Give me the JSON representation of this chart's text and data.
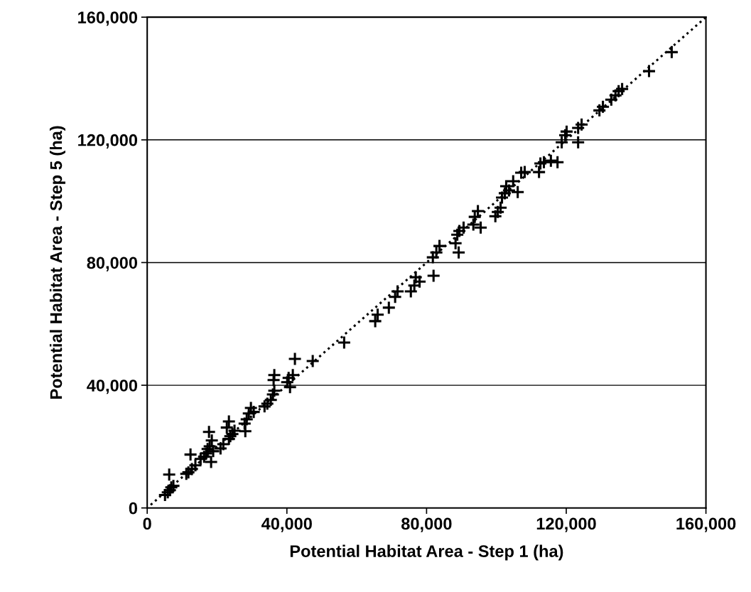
{
  "chart_data": {
    "type": "scatter",
    "xlabel": "Potential Habitat Area - Step 1 (ha)",
    "ylabel": "Potential Habitat Area - Step 5 (ha)",
    "xlim": [
      0,
      160000
    ],
    "ylim": [
      0,
      160000
    ],
    "xticks": [
      {
        "value": 0,
        "label": "0"
      },
      {
        "value": 40000,
        "label": "40,000"
      },
      {
        "value": 80000,
        "label": "80,000"
      },
      {
        "value": 120000,
        "label": "120,000"
      },
      {
        "value": 160000,
        "label": "160,000"
      }
    ],
    "yticks": [
      {
        "value": 0,
        "label": "0"
      },
      {
        "value": 40000,
        "label": "40,000"
      },
      {
        "value": 80000,
        "label": "80,000"
      },
      {
        "value": 120000,
        "label": "120,000"
      },
      {
        "value": 160000,
        "label": "160,000"
      }
    ],
    "grid": "y",
    "series": [
      {
        "marker": "cross",
        "color": "#000000",
        "x": [
          5100,
          5900,
          6500,
          6300,
          6900,
          7500,
          11200,
          11800,
          12400,
          12800,
          13800,
          15300,
          16300,
          16900,
          17300,
          17900,
          18500,
          17700,
          18300,
          18900,
          21000,
          21800,
          22800,
          23400,
          23800,
          24400,
          25000,
          28100,
          27900,
          28500,
          29100,
          29700,
          30500,
          23400,
          33600,
          34400,
          35400,
          36000,
          36400,
          36400,
          36200,
          40100,
          40500,
          40900,
          41700,
          42300,
          47400,
          56400,
          65300,
          66000,
          69200,
          71000,
          71700,
          75500,
          76500,
          76900,
          78000,
          82000,
          81800,
          82800,
          83700,
          88300,
          88800,
          89400,
          90600,
          89200,
          93400,
          93800,
          94700,
          95500,
          99700,
          100400,
          101200,
          101600,
          102400,
          102800,
          103600,
          104800,
          106100,
          107100,
          108100,
          112200,
          112600,
          113600,
          115600,
          117500,
          118700,
          119700,
          120100,
          123400,
          123400,
          124400,
          129500,
          130500,
          132900,
          134100,
          135000,
          136000,
          143700,
          150200
        ],
        "values": [
          4200,
          5100,
          5800,
          10900,
          6700,
          7200,
          11100,
          11600,
          17400,
          12700,
          13900,
          16000,
          16700,
          17800,
          19200,
          20100,
          22000,
          24800,
          15000,
          18500,
          19400,
          20800,
          26200,
          22500,
          23400,
          24100,
          25200,
          25000,
          27500,
          28900,
          30800,
          32600,
          31300,
          28200,
          33100,
          34000,
          35200,
          37000,
          38200,
          43300,
          41700,
          41000,
          42400,
          39400,
          43300,
          48600,
          47900,
          53900,
          60900,
          63000,
          65300,
          68800,
          70600,
          70600,
          72500,
          75200,
          73800,
          75700,
          81700,
          83300,
          85400,
          86300,
          89100,
          90300,
          91400,
          83300,
          92400,
          94900,
          96800,
          91400,
          95100,
          96500,
          97900,
          101200,
          102600,
          104900,
          103500,
          106500,
          103000,
          109300,
          109500,
          109500,
          112300,
          112700,
          113200,
          112700,
          119200,
          121500,
          122700,
          119200,
          123900,
          125000,
          129600,
          130800,
          133100,
          134500,
          135900,
          136600,
          142400,
          148600
        ]
      },
      {
        "type": "line",
        "line_style": "dotted",
        "color": "#000000",
        "x": [
          1000,
          160000
        ],
        "values": [
          1000,
          160000
        ]
      }
    ]
  }
}
